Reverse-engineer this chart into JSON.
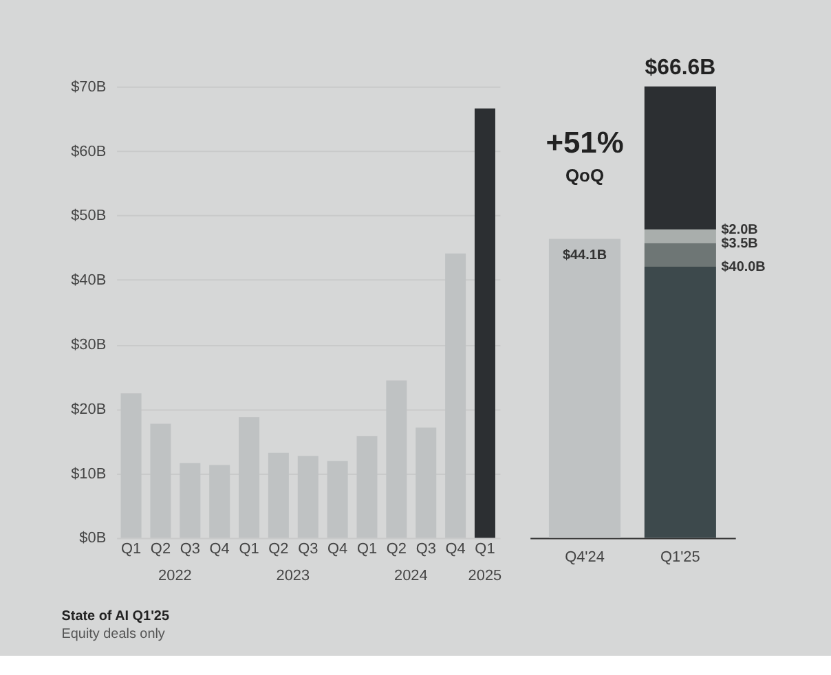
{
  "chart_data": [
    {
      "type": "bar",
      "categories": [
        "Q1",
        "Q2",
        "Q3",
        "Q4",
        "Q1",
        "Q2",
        "Q3",
        "Q4",
        "Q1",
        "Q2",
        "Q3",
        "Q4",
        "Q1"
      ],
      "values": [
        22.4,
        17.7,
        11.6,
        11.3,
        18.7,
        13.2,
        12.7,
        11.9,
        15.8,
        24.4,
        17.1,
        44.1,
        66.6
      ],
      "colors": [
        "#bfc2c3",
        "#bfc2c3",
        "#bfc2c3",
        "#bfc2c3",
        "#bfc2c3",
        "#bfc2c3",
        "#bfc2c3",
        "#bfc2c3",
        "#bfc2c3",
        "#bfc2c3",
        "#bfc2c3",
        "#bfc2c3",
        "#2c2f32"
      ],
      "ylim": [
        0,
        70
      ],
      "yticks": [
        {
          "value": 0,
          "label": "$0B"
        },
        {
          "value": 10,
          "label": "$10B"
        },
        {
          "value": 20,
          "label": "$20B"
        },
        {
          "value": 30,
          "label": "$30B"
        },
        {
          "value": 40,
          "label": "$40B"
        },
        {
          "value": 50,
          "label": "$50B"
        },
        {
          "value": 60,
          "label": "$60B"
        },
        {
          "value": 70,
          "label": "$70B"
        }
      ],
      "grid": "y",
      "annotations": [
        "2022",
        "2023",
        "2024",
        "2025",
        "State of AI Q1'25",
        "Equity deals only"
      ]
    },
    {
      "type": "bar",
      "stacked": true,
      "categories": [
        "Q4'24",
        "Q1'25"
      ],
      "series": [
        {
          "color": "#bfc2c3",
          "values": [
            44.1,
            null
          ],
          "value_labels": [
            "$44.1B",
            null
          ]
        },
        {
          "color": "#3d494c",
          "values": [
            null,
            40.0
          ]
        },
        {
          "color": "#6e7675",
          "values": [
            null,
            3.5
          ]
        },
        {
          "color": "#a9aeac",
          "values": [
            null,
            2.0
          ]
        },
        {
          "color": "#2c2f32",
          "values": [
            null,
            21.1
          ]
        }
      ],
      "totals": [
        null,
        "$66.6B"
      ],
      "annotations": [
        "+51%",
        "QoQ",
        {
          "text": "$40.0B",
          "x": "Q1'25",
          "y": 40.0
        },
        {
          "text": "$3.5B",
          "x": "Q1'25",
          "y": 43.5
        },
        {
          "text": "$2.0B",
          "x": "Q1'25",
          "y": 45.5
        }
      ]
    }
  ]
}
